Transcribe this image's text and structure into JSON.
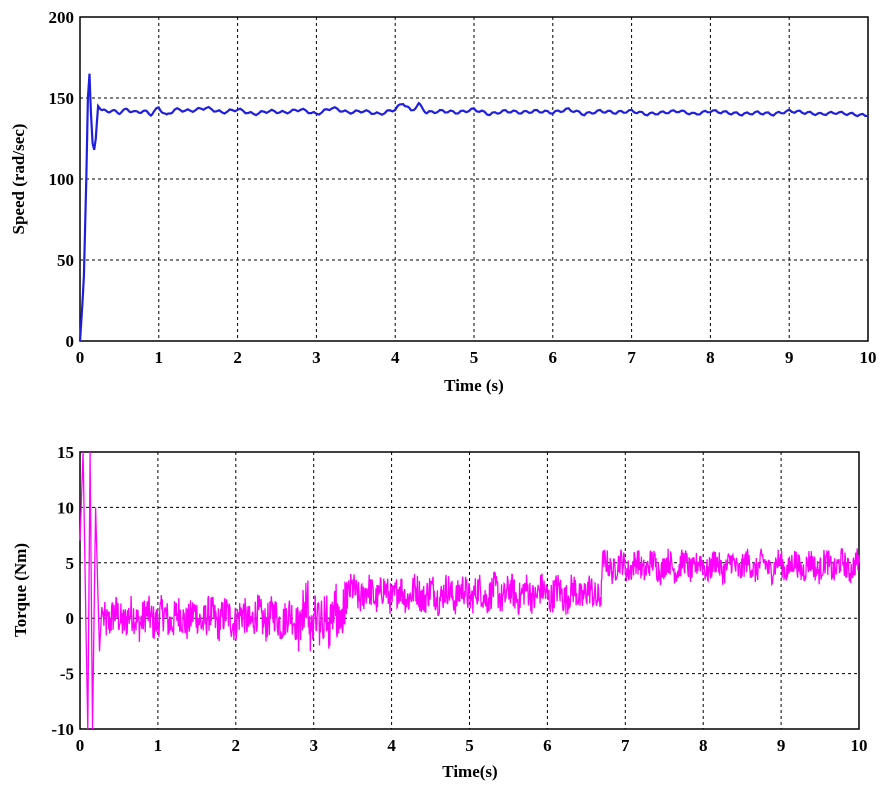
{
  "chart_data": [
    {
      "type": "line",
      "title": "",
      "xlabel": "Time (s)",
      "ylabel": "Speed (rad/sec)",
      "xlim": [
        0,
        10
      ],
      "ylim": [
        0,
        200
      ],
      "xticks": [
        "0",
        "1",
        "2",
        "3",
        "4",
        "5",
        "6",
        "7",
        "8",
        "9",
        "10"
      ],
      "yticks": [
        "0",
        "50",
        "100",
        "150",
        "200"
      ],
      "grid": true,
      "color": "#1f1fe0",
      "series": [
        {
          "x": [
            0,
            0.02,
            0.05,
            0.08,
            0.1,
            0.12,
            0.14,
            0.16,
            0.18,
            0.2,
            0.23,
            0.26,
            0.3,
            0.4,
            0.5,
            0.6,
            0.7,
            0.8,
            0.9,
            1.0,
            1.1,
            1.2,
            1.4,
            1.6,
            1.8,
            2.0,
            2.2,
            2.4,
            2.6,
            2.8,
            3.0,
            3.2,
            3.4,
            3.6,
            3.8,
            4.0,
            4.1,
            4.2,
            4.3,
            4.4,
            4.6,
            4.8,
            5.0,
            5.2,
            5.4,
            5.6,
            5.8,
            6.0,
            6.2,
            6.4,
            6.6,
            6.8,
            7.0,
            7.2,
            7.4,
            7.6,
            7.8,
            8.0,
            8.2,
            8.4,
            8.6,
            8.8,
            9.0,
            9.2,
            9.4,
            9.6,
            9.8,
            10.0
          ],
          "values": [
            0,
            15,
            40,
            100,
            150,
            165,
            140,
            122,
            118,
            125,
            145,
            143,
            142,
            142,
            141,
            143,
            141,
            142,
            140,
            144,
            139,
            143,
            142,
            144,
            141,
            143,
            140,
            142,
            141,
            143,
            140,
            144,
            141,
            142,
            140,
            143,
            147,
            142,
            146,
            141,
            142,
            141,
            143,
            140,
            142,
            141,
            142,
            141,
            143,
            140,
            142,
            141,
            142,
            140,
            141,
            142,
            140,
            142,
            141,
            140,
            141,
            140,
            142,
            141,
            140,
            141,
            140,
            139
          ]
        }
      ]
    },
    {
      "type": "line",
      "title": "",
      "xlabel": "Time(s)",
      "ylabel": "Torque (Nm)",
      "xlim": [
        0,
        10
      ],
      "ylim": [
        -10,
        15
      ],
      "xticks": [
        "0",
        "1",
        "2",
        "3",
        "4",
        "5",
        "6",
        "7",
        "8",
        "9",
        "10"
      ],
      "yticks": [
        "-10",
        "-5",
        "0",
        "5",
        "10",
        "15"
      ],
      "grid": true,
      "color": "#ff00ff",
      "segments": [
        {
          "x_start": 0.3,
          "x_end": 3.4,
          "mean": 0.0,
          "noise": 1.7
        },
        {
          "x_start": 3.4,
          "x_end": 6.7,
          "mean": 2.2,
          "noise": 1.5
        },
        {
          "x_start": 6.7,
          "x_end": 10.0,
          "mean": 4.7,
          "noise": 1.2
        }
      ],
      "transient": {
        "x": [
          0,
          0.04,
          0.08,
          0.1,
          0.13,
          0.16,
          0.2,
          0.22,
          0.25,
          0.28,
          0.3
        ],
        "values": [
          7,
          15,
          -2,
          -10,
          15,
          -10,
          10,
          5,
          -3,
          1,
          0
        ]
      }
    }
  ]
}
